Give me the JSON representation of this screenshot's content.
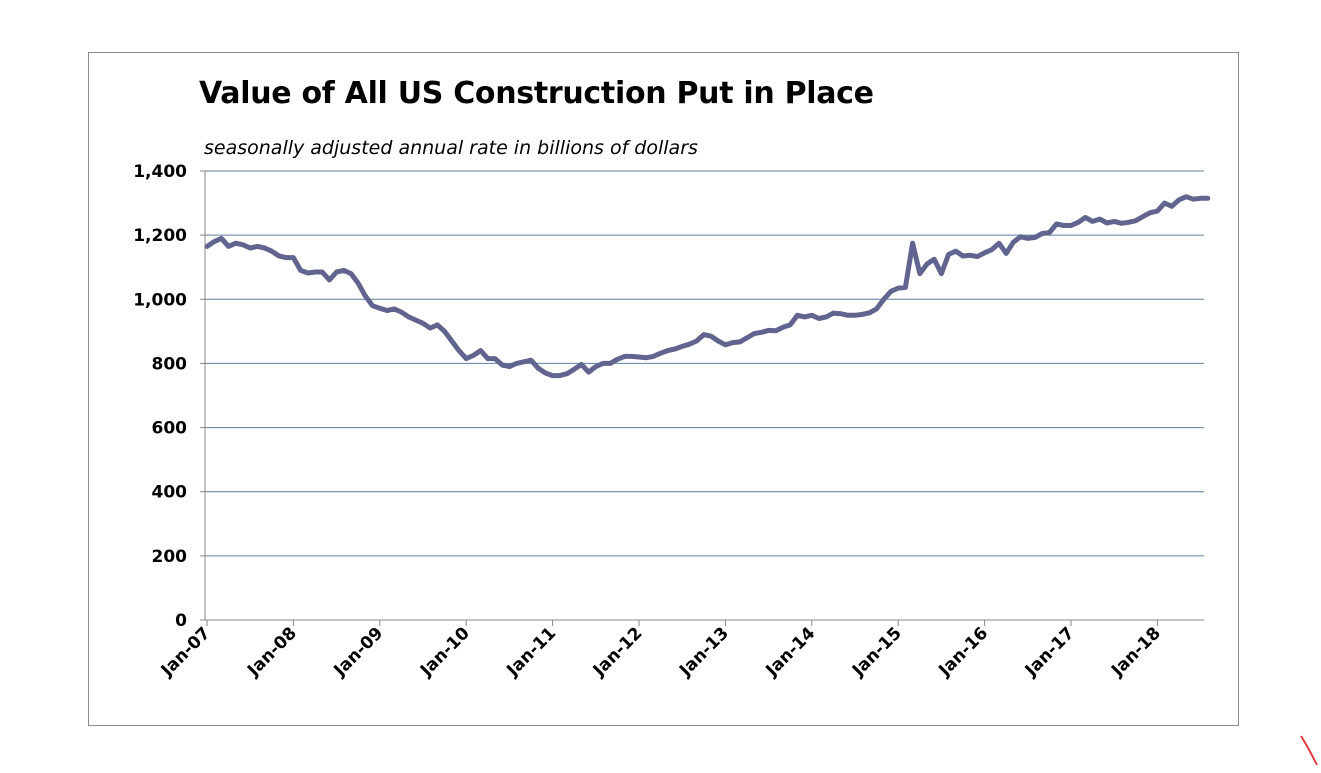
{
  "chart_data": {
    "type": "line",
    "title": "Value of All US Construction Put in Place",
    "subtitle": "seasonally adjusted annual rate in billions of dollars",
    "xlabel": "",
    "ylabel": "",
    "ylim": [
      0,
      1400
    ],
    "yticks": [
      0,
      200,
      400,
      600,
      800,
      1000,
      1200,
      1400
    ],
    "ytick_labels": [
      "0",
      "200",
      "400",
      "600",
      "800",
      "1,000",
      "1,200",
      "1,400"
    ],
    "xtick_labels": [
      "Jan-07",
      "Jan-08",
      "Jan-09",
      "Jan-10",
      "Jan-11",
      "Jan-12",
      "Jan-13",
      "Jan-14",
      "Jan-15",
      "Jan-16",
      "Jan-17",
      "Jan-18"
    ],
    "grid": "horizontal",
    "legend": "none",
    "line_color": "#60648f",
    "grid_color": "#5d7fa0",
    "start": "Jan-07",
    "frequency": "monthly",
    "series": [
      {
        "values": [
          1165,
          1180,
          1190,
          1165,
          1175,
          1170,
          1160,
          1165,
          1160,
          1150,
          1135,
          1130,
          1130,
          1090,
          1082,
          1085,
          1085,
          1060,
          1085,
          1090,
          1080,
          1050,
          1010,
          980,
          972,
          965,
          970,
          960,
          945,
          935,
          925,
          910,
          920,
          900,
          870,
          840,
          815,
          825,
          840,
          815,
          815,
          795,
          790,
          800,
          805,
          810,
          785,
          770,
          762,
          762,
          768,
          782,
          797,
          773,
          790,
          800,
          800,
          813,
          822,
          822,
          820,
          818,
          822,
          832,
          840,
          845,
          853,
          860,
          870,
          890,
          885,
          870,
          858,
          865,
          867,
          880,
          893,
          897,
          903,
          902,
          913,
          920,
          950,
          945,
          950,
          940,
          945,
          957,
          955,
          950,
          950,
          953,
          958,
          970,
          1000,
          1025,
          1035,
          1037,
          1175,
          1080,
          1110,
          1125,
          1080,
          1140,
          1150,
          1135,
          1137,
          1133,
          1145,
          1155,
          1175,
          1143,
          1178,
          1195,
          1190,
          1193,
          1205,
          1208,
          1235,
          1230,
          1230,
          1240,
          1255,
          1243,
          1250,
          1238,
          1243,
          1237,
          1240,
          1245,
          1258,
          1270,
          1275,
          1300,
          1290,
          1310,
          1320,
          1312,
          1315,
          1315
        ]
      }
    ]
  }
}
